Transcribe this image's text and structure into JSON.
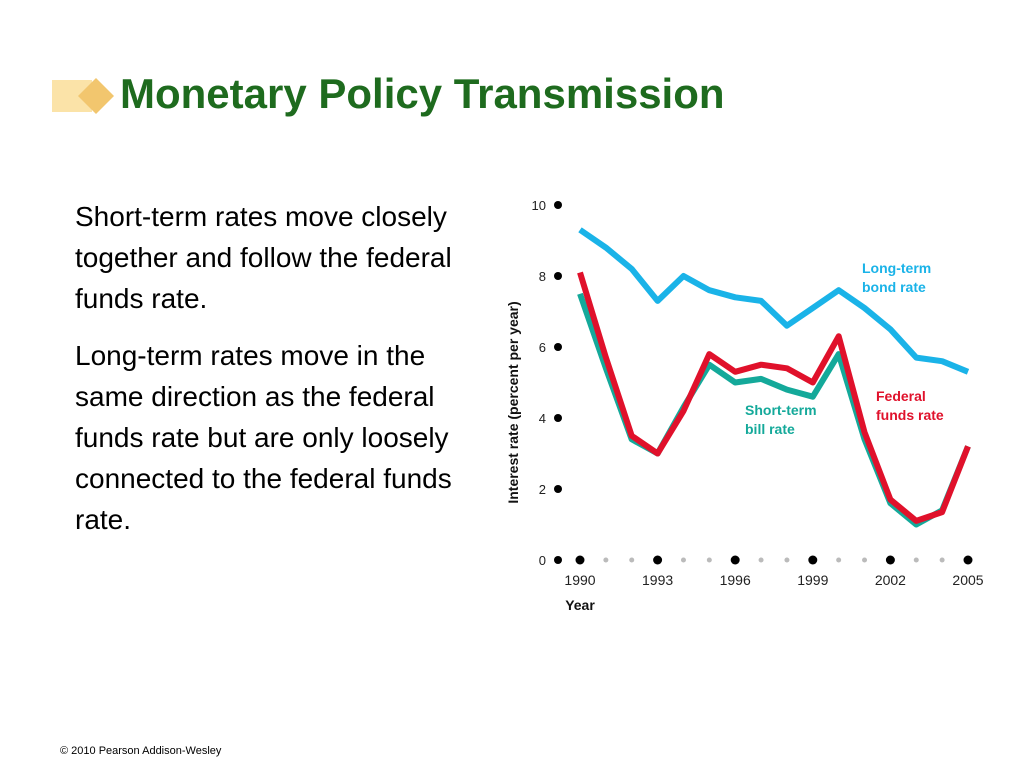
{
  "slide": {
    "title": "Monetary Policy Transmission",
    "paragraphs": [
      "Short-term rates move closely together and follow the federal funds rate.",
      "Long-term rates move in the same direction as the federal funds rate but are only loosely connected to the federal funds rate."
    ],
    "footer": "© 2010 Pearson Addison-Wesley"
  },
  "colors": {
    "title": "#1e6b1e",
    "long_term": "#1ab3e8",
    "short_term": "#14a99a",
    "federal_funds": "#e0112b"
  },
  "chart_data": {
    "type": "line",
    "xlabel": "Year",
    "ylabel": "Interest rate (percent per year)",
    "xlim": [
      1990,
      2005
    ],
    "ylim": [
      0,
      10
    ],
    "x_ticks": [
      "1990",
      "1993",
      "1996",
      "1999",
      "2002",
      "2005"
    ],
    "y_ticks": [
      "0",
      "2",
      "4",
      "6",
      "8",
      "10"
    ],
    "x": [
      1990,
      1991,
      1992,
      1993,
      1994,
      1995,
      1996,
      1997,
      1998,
      1999,
      2000,
      2001,
      2002,
      2003,
      2004,
      2005
    ],
    "series": [
      {
        "name": "Long-term bond rate",
        "label_lines": [
          "Long-term",
          "bond rate"
        ],
        "color": "#1ab3e8",
        "values": [
          9.3,
          8.8,
          8.2,
          7.3,
          8.0,
          7.6,
          7.4,
          7.3,
          6.6,
          7.1,
          7.6,
          7.1,
          6.5,
          5.7,
          5.6,
          5.3
        ]
      },
      {
        "name": "Federal funds rate",
        "label_lines": [
          "Federal",
          "funds rate"
        ],
        "color": "#e0112b",
        "values": [
          8.1,
          5.7,
          3.5,
          3.0,
          4.2,
          5.8,
          5.3,
          5.5,
          5.4,
          5.0,
          6.3,
          3.6,
          1.7,
          1.1,
          1.35,
          3.2
        ]
      },
      {
        "name": "Short-term bill rate",
        "label_lines": [
          "Short-term",
          "bill rate"
        ],
        "color": "#14a99a",
        "values": [
          7.5,
          5.4,
          3.4,
          3.0,
          4.3,
          5.5,
          5.0,
          5.1,
          4.8,
          4.6,
          5.8,
          3.4,
          1.6,
          1.0,
          1.4,
          3.2
        ]
      }
    ]
  }
}
